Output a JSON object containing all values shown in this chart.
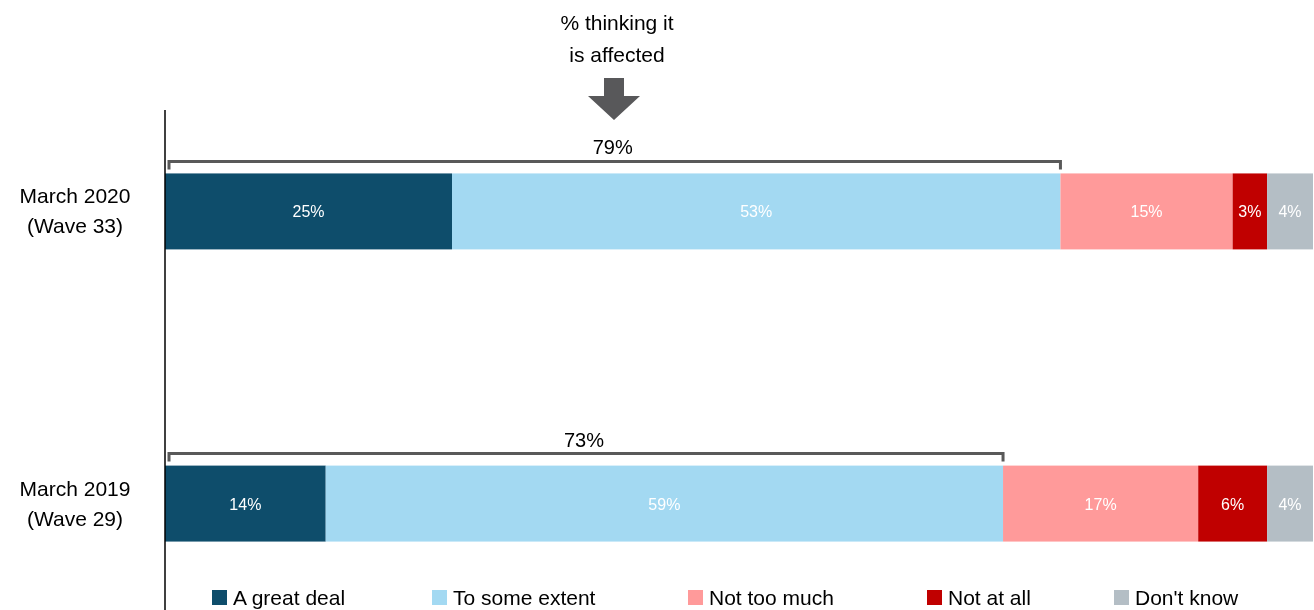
{
  "chart_data": {
    "type": "bar",
    "orientation": "horizontal",
    "stacked": true,
    "legend": "bottom",
    "categories": [
      "March 2020 (Wave 33)",
      "March 2019 (Wave 29)"
    ],
    "series": [
      {
        "name": "A great deal",
        "color": "#0e4d6b",
        "values": [
          25,
          14
        ],
        "value_labels": [
          "25%",
          "14%"
        ]
      },
      {
        "name": "To some extent",
        "color": "#a3d9f2",
        "values": [
          53,
          59
        ],
        "value_labels": [
          "53%",
          "59%"
        ]
      },
      {
        "name": "Not too much",
        "color": "#ff9a9a",
        "values": [
          15,
          17
        ],
        "value_labels": [
          "15%",
          "17%"
        ]
      },
      {
        "name": "Not at all",
        "color": "#c00000",
        "values": [
          3,
          6
        ],
        "value_labels": [
          "3%",
          "6%"
        ]
      },
      {
        "name": "Don't know",
        "color": "#b4bec5",
        "values": [
          4,
          4
        ],
        "value_labels": [
          "4%",
          "4%"
        ]
      }
    ],
    "annotations": [
      "% thinking it is affected",
      "79%",
      "73%"
    ]
  }
}
